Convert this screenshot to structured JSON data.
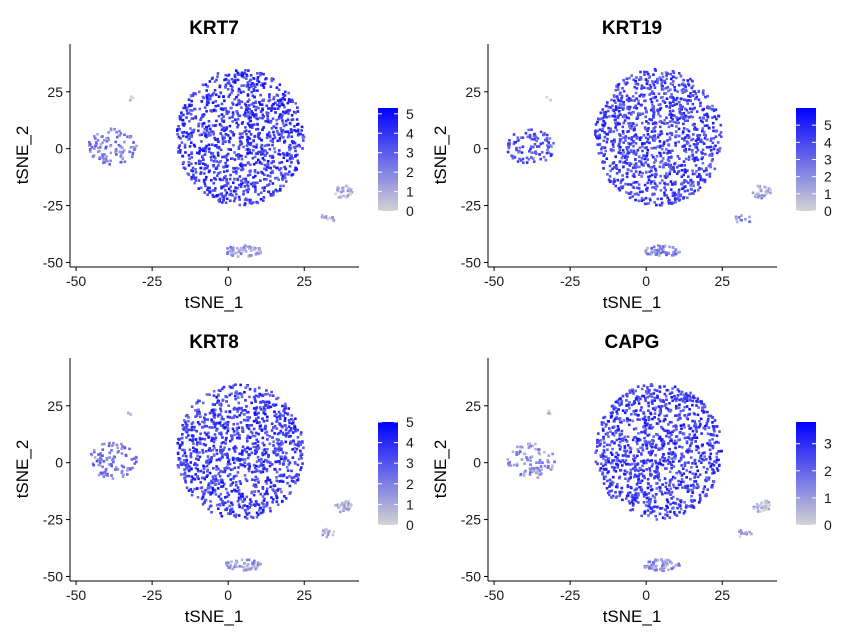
{
  "colors": {
    "low": "#d3d3d3",
    "high": "#0000ff",
    "axis": "#000000"
  },
  "chart_data": [
    {
      "type": "scatter",
      "title": "KRT7",
      "xlabel": "tSNE_1",
      "ylabel": "tSNE_2",
      "xlim": [
        -52,
        43
      ],
      "ylim": [
        -52,
        46
      ],
      "x_ticks": [
        -50,
        -25,
        0,
        25
      ],
      "y_ticks": [
        -50,
        -25,
        0,
        25
      ],
      "x_tick_labels": [
        "-50",
        "-25",
        "0",
        "25"
      ],
      "y_tick_labels": [
        "-50",
        "-25",
        "0",
        "25"
      ],
      "colorbar": {
        "min": 0,
        "max": 5.3,
        "ticks": [
          0,
          1,
          2,
          3,
          4,
          5
        ],
        "tick_labels": [
          "0",
          "1",
          "2",
          "3",
          "4",
          "5"
        ]
      },
      "seed": 11,
      "clusters": [
        {
          "cx": 4,
          "cy": 5,
          "rx": 21,
          "ry": 30,
          "n": 1100,
          "level": 0.72
        },
        {
          "cx": -38,
          "cy": 1,
          "rx": 8,
          "ry": 8,
          "n": 95,
          "level": 0.4
        },
        {
          "cx": 38,
          "cy": -19,
          "rx": 3,
          "ry": 3,
          "n": 30,
          "level": 0.12
        },
        {
          "cx": 32,
          "cy": -31,
          "rx": 3,
          "ry": 2,
          "n": 12,
          "level": 0.15
        },
        {
          "cx": 5,
          "cy": -45,
          "rx": 6,
          "ry": 2.5,
          "n": 55,
          "level": 0.3
        },
        {
          "cx": -32,
          "cy": 22,
          "rx": 1,
          "ry": 1,
          "n": 3,
          "level": 0.05
        }
      ]
    },
    {
      "type": "scatter",
      "title": "KRT19",
      "xlabel": "tSNE_1",
      "ylabel": "tSNE_2",
      "xlim": [
        -52,
        43
      ],
      "ylim": [
        -52,
        46
      ],
      "x_ticks": [
        -50,
        -25,
        0,
        25
      ],
      "y_ticks": [
        -50,
        -25,
        0,
        25
      ],
      "x_tick_labels": [
        "-50",
        "-25",
        "0",
        "25"
      ],
      "y_tick_labels": [
        "-50",
        "-25",
        "0",
        "25"
      ],
      "colorbar": {
        "min": 0,
        "max": 6.0,
        "ticks": [
          0,
          1,
          2,
          3,
          4,
          5
        ],
        "tick_labels": [
          "0",
          "1",
          "2",
          "3",
          "4",
          "5"
        ]
      },
      "seed": 23,
      "clusters": [
        {
          "cx": 4,
          "cy": 5,
          "rx": 21,
          "ry": 30,
          "n": 1100,
          "level": 0.68
        },
        {
          "cx": -38,
          "cy": 1,
          "rx": 8,
          "ry": 8,
          "n": 95,
          "level": 0.62
        },
        {
          "cx": 38,
          "cy": -19,
          "rx": 3,
          "ry": 3,
          "n": 30,
          "level": 0.22
        },
        {
          "cx": 32,
          "cy": -31,
          "rx": 3,
          "ry": 2,
          "n": 12,
          "level": 0.3
        },
        {
          "cx": 5,
          "cy": -45,
          "rx": 6,
          "ry": 2.5,
          "n": 55,
          "level": 0.35
        },
        {
          "cx": -32,
          "cy": 22,
          "rx": 1,
          "ry": 1,
          "n": 3,
          "level": 0.05
        }
      ]
    },
    {
      "type": "scatter",
      "title": "KRT8",
      "xlabel": "tSNE_1",
      "ylabel": "tSNE_2",
      "xlim": [
        -52,
        43
      ],
      "ylim": [
        -52,
        46
      ],
      "x_ticks": [
        -50,
        -25,
        0,
        25
      ],
      "y_ticks": [
        -50,
        -25,
        0,
        25
      ],
      "x_tick_labels": [
        "-50",
        "-25",
        "0",
        "25"
      ],
      "y_tick_labels": [
        "-50",
        "-25",
        "0",
        "25"
      ],
      "colorbar": {
        "min": 0,
        "max": 5.0,
        "ticks": [
          0,
          1,
          2,
          3,
          4,
          5
        ],
        "tick_labels": [
          "0",
          "1",
          "2",
          "3",
          "4",
          "5"
        ]
      },
      "seed": 37,
      "clusters": [
        {
          "cx": 4,
          "cy": 5,
          "rx": 21,
          "ry": 30,
          "n": 1100,
          "level": 0.7
        },
        {
          "cx": -38,
          "cy": 1,
          "rx": 8,
          "ry": 8,
          "n": 95,
          "level": 0.42
        },
        {
          "cx": 38,
          "cy": -19,
          "rx": 3,
          "ry": 3,
          "n": 30,
          "level": 0.12
        },
        {
          "cx": 32,
          "cy": -31,
          "rx": 3,
          "ry": 2,
          "n": 12,
          "level": 0.15
        },
        {
          "cx": 5,
          "cy": -45,
          "rx": 6,
          "ry": 2.5,
          "n": 55,
          "level": 0.25
        },
        {
          "cx": -32,
          "cy": 22,
          "rx": 1,
          "ry": 1,
          "n": 3,
          "level": 0.05
        }
      ]
    },
    {
      "type": "scatter",
      "title": "CAPG",
      "xlabel": "tSNE_1",
      "ylabel": "tSNE_2",
      "xlim": [
        -52,
        43
      ],
      "ylim": [
        -52,
        46
      ],
      "x_ticks": [
        -50,
        -25,
        0,
        25
      ],
      "y_ticks": [
        -50,
        -25,
        0,
        25
      ],
      "x_tick_labels": [
        "-50",
        "-25",
        "0",
        "25"
      ],
      "y_tick_labels": [
        "-50",
        "-25",
        "0",
        "25"
      ],
      "colorbar": {
        "min": 0,
        "max": 3.8,
        "ticks": [
          0,
          1,
          2,
          3
        ],
        "tick_labels": [
          "0",
          "1",
          "2",
          "3"
        ]
      },
      "seed": 51,
      "clusters": [
        {
          "cx": 4,
          "cy": 5,
          "rx": 21,
          "ry": 30,
          "n": 1100,
          "level": 0.7
        },
        {
          "cx": -38,
          "cy": 1,
          "rx": 8,
          "ry": 8,
          "n": 95,
          "level": 0.3
        },
        {
          "cx": 38,
          "cy": -19,
          "rx": 3,
          "ry": 3,
          "n": 30,
          "level": 0.15
        },
        {
          "cx": 32,
          "cy": -31,
          "rx": 3,
          "ry": 2,
          "n": 12,
          "level": 0.2
        },
        {
          "cx": 5,
          "cy": -45,
          "rx": 6,
          "ry": 2.5,
          "n": 55,
          "level": 0.3
        },
        {
          "cx": -32,
          "cy": 22,
          "rx": 1,
          "ry": 1,
          "n": 3,
          "level": 0.05
        }
      ]
    }
  ]
}
